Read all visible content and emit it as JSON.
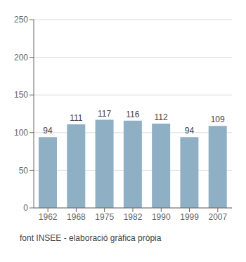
{
  "chart_data": {
    "type": "bar",
    "categories": [
      "1962",
      "1968",
      "1975",
      "1982",
      "1990",
      "1999",
      "2007"
    ],
    "values": [
      94,
      111,
      117,
      116,
      112,
      94,
      109
    ],
    "color": "#8FAFC4",
    "ylim": [
      0,
      250
    ],
    "yticks": [
      0,
      50,
      100,
      150,
      200,
      250
    ],
    "grid": true,
    "data_labels": true,
    "annotations": [
      "font INSEE - elaboració gràfica pròpia"
    ]
  }
}
